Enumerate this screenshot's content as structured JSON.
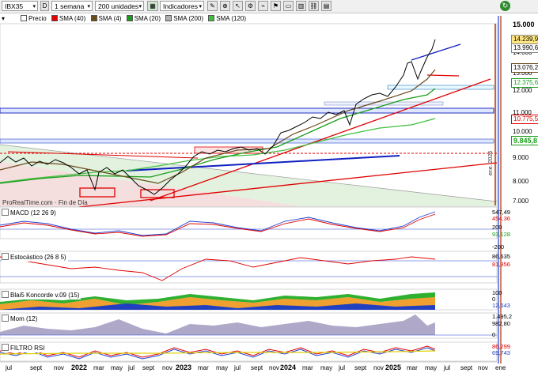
{
  "toolbar": {
    "symbol": "IBX35",
    "d_button": "D",
    "period": "1 semana",
    "units": "200 unidades",
    "indicators_button": "Indicadores"
  },
  "legend": {
    "price": "Precio",
    "sma40": "SMA (40)",
    "sma4": "SMA (4)",
    "sma20": "SMA (20)",
    "sma200": "SMA (200)",
    "sma120": "SMA (120)"
  },
  "colors": {
    "price": "#000000",
    "sma40": "#e00000",
    "sma4": "#6b4a1a",
    "sma20": "#1a9e1a",
    "sma200": "#b0b0b0",
    "sma120": "#40c040"
  },
  "main_axis": {
    "ticks": [
      "15.000",
      "14.000",
      "13.000",
      "12.000",
      "11.000",
      "10.000",
      "9.000",
      "8.000",
      "7.000"
    ],
    "tags": {
      "last": "14.239,90",
      "high": "13.990,65",
      "sma4": "13.076,22",
      "sma20": "12.375,64",
      "sma40": "10.775,56",
      "sma120": "9.845,8"
    },
    "vertical_label": "ene. 2026",
    "source_text": "ProRealTime.com · Fin de Día"
  },
  "panels": {
    "macd": {
      "title": "MACD (12 26 9)",
      "labels": [
        "547,49",
        "454,36",
        "200",
        "93,128",
        "-200"
      ]
    },
    "estocastico": {
      "title": "Estocástico (26 8 5)",
      "labels": [
        "86,635",
        "81,356"
      ]
    },
    "blai5": {
      "title": "Blai5 Koncorde v.09 (15)",
      "labels": [
        "100",
        "0",
        "12,643"
      ]
    },
    "mom": {
      "title": "Mom (12)",
      "labels": [
        "1.495,2",
        "982,80",
        "0"
      ]
    },
    "filtro": {
      "title": "FILTRO RSI",
      "labels": [
        "86,299",
        "69,743"
      ]
    }
  },
  "xaxis": [
    "jul",
    "sept",
    "nov",
    "2022",
    "mar",
    "may",
    "jul",
    "sept",
    "nov",
    "2023",
    "mar",
    "may",
    "jul",
    "sept",
    "nov",
    "2024",
    "mar",
    "may",
    "jul",
    "sept",
    "nov",
    "2025",
    "mar",
    "may",
    "jul",
    "sept",
    "nov",
    "ene"
  ]
}
